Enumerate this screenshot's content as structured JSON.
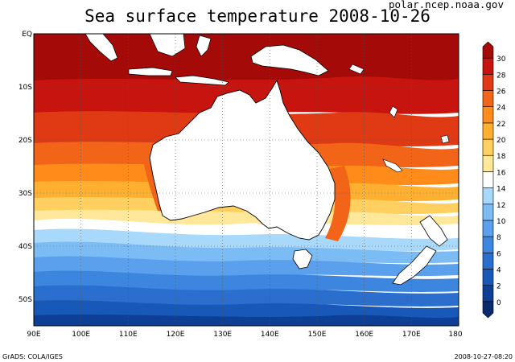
{
  "title": "Sea surface temperature 2008-10-26",
  "source": "polar.ncep.noaa.gov",
  "credit": "GrADS: COLA/IGES",
  "timestamp": "2008-10-27-08:20",
  "lat_labels": [
    "EQ",
    "10S",
    "20S",
    "30S",
    "40S",
    "50S"
  ],
  "lon_labels": [
    "90E",
    "100E",
    "110E",
    "120E",
    "130E",
    "140E",
    "150E",
    "160E",
    "170E",
    "180"
  ],
  "colorbar": {
    "labels": [
      "0",
      "2",
      "4",
      "6",
      "8",
      "10",
      "12",
      "14",
      "16",
      "18",
      "20",
      "22",
      "24",
      "26",
      "28",
      "30"
    ],
    "colors": [
      "#0a2a6e",
      "#0d3f96",
      "#1758b8",
      "#2a6fd0",
      "#3d86e0",
      "#5aa0ec",
      "#7cbcf4",
      "#a8d8fa",
      "#ffffff",
      "#ffe89a",
      "#ffd060",
      "#ffb030",
      "#ff8c1a",
      "#f26418",
      "#e03a14",
      "#c8140e",
      "#a40a08"
    ]
  }
}
